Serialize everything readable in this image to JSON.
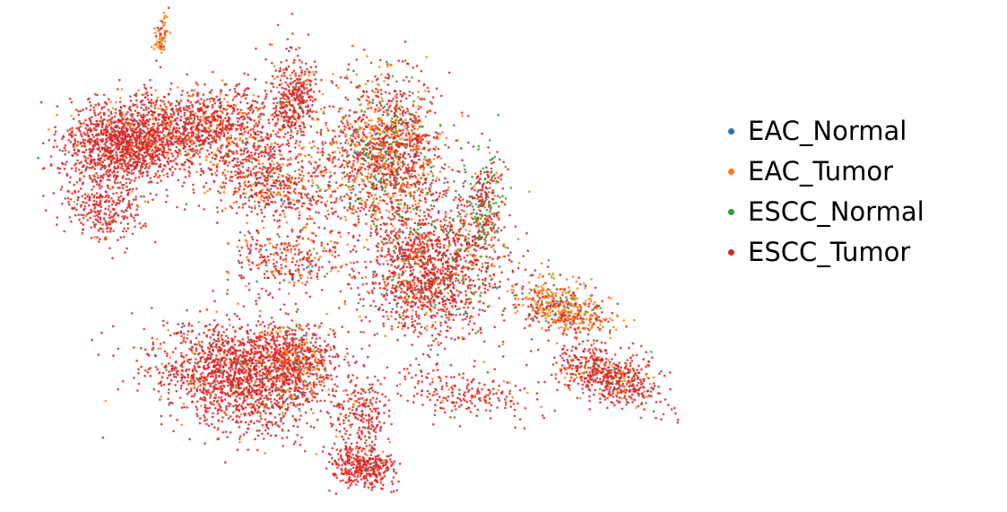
{
  "chart_data": {
    "type": "scatter",
    "title": "",
    "xlabel": "",
    "ylabel": "",
    "axes_visible": false,
    "grid": false,
    "legend_position": "right",
    "series": [
      {
        "name": "EAC_Normal",
        "color": "#1f77b4"
      },
      {
        "name": "EAC_Tumor",
        "color": "#ff7f0e"
      },
      {
        "name": "ESCC_Normal",
        "color": "#2ca02c"
      },
      {
        "name": "ESCC_Tumor",
        "color": "#d62728"
      }
    ]
  }
}
